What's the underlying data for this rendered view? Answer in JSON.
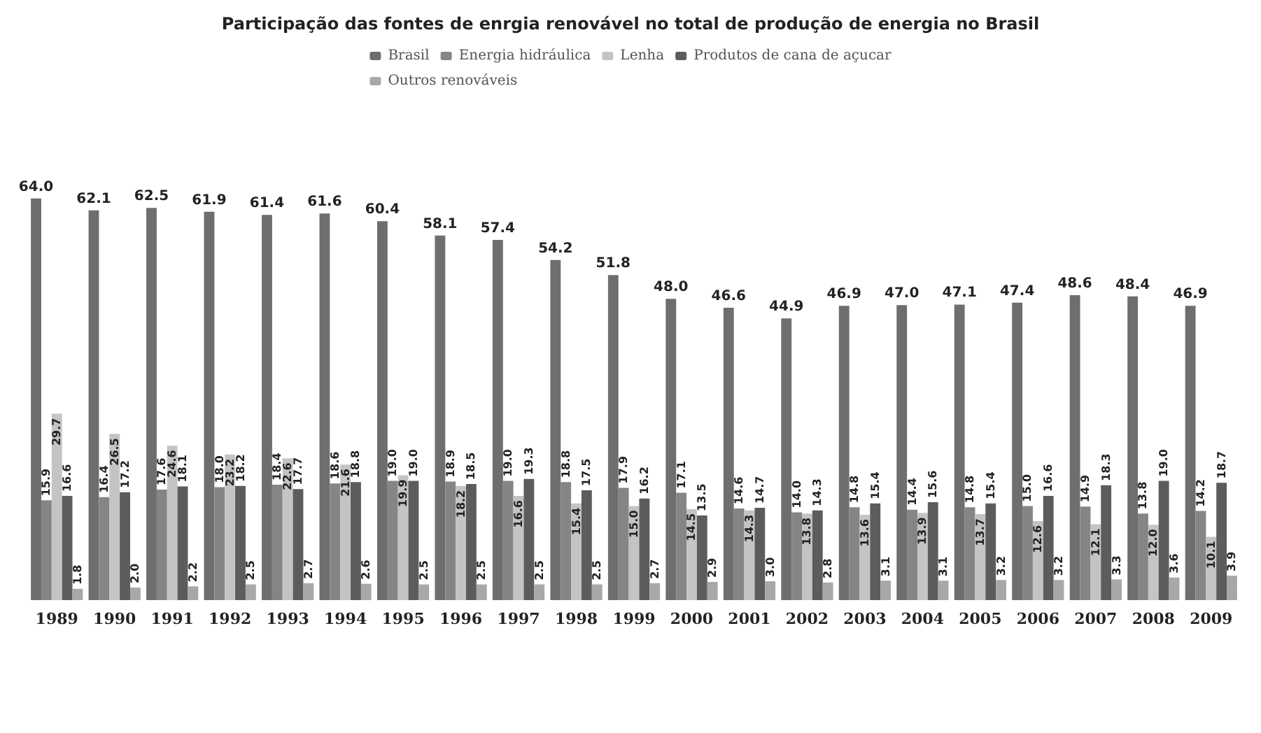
{
  "chart_data": {
    "type": "bar",
    "title": "Participação das fontes de enrgia renovável no total de produção de energia no Brasil",
    "categories": [
      "1989",
      "1990",
      "1991",
      "1992",
      "1993",
      "1994",
      "1995",
      "1996",
      "1997",
      "1998",
      "1999",
      "2000",
      "2001",
      "2002",
      "2003",
      "2004",
      "2005",
      "2006",
      "2007",
      "2008",
      "2009"
    ],
    "series": [
      {
        "name": "Brasil",
        "color": "#6e6e6e",
        "values": [
          64.0,
          62.1,
          62.5,
          61.9,
          61.4,
          61.6,
          60.4,
          58.1,
          57.4,
          54.2,
          51.8,
          48.0,
          46.6,
          44.9,
          46.9,
          47.0,
          47.1,
          47.4,
          48.6,
          48.4,
          46.9
        ],
        "value_labels": [
          "64.0",
          "62.1",
          "62.5",
          "61.9",
          "61.4",
          "61.6",
          "60.4",
          "58.1",
          "57.4",
          "54.2",
          "51.8",
          "48.0",
          "46.6",
          "44.9",
          "46.9",
          "47.0",
          "47.1",
          "47.4",
          "48.6",
          "48.4",
          "46.9"
        ]
      },
      {
        "name": "Energia hidráulica",
        "color": "#858585",
        "values": [
          15.9,
          16.4,
          17.6,
          18.0,
          18.4,
          18.6,
          19.0,
          18.9,
          19.0,
          18.8,
          17.9,
          17.1,
          14.6,
          14.0,
          14.8,
          14.4,
          14.8,
          15.0,
          14.9,
          13.8,
          14.2
        ],
        "value_labels": [
          "15.9",
          "16.4",
          "17.6",
          "18.0",
          "18.4",
          "18.6",
          "19.0",
          "18.9",
          "19.0",
          "18.8",
          "17.9",
          "17.1",
          "14.6",
          "14.0",
          "14.8",
          "14.4",
          "14.8",
          "15.0",
          "14.9",
          "13.8",
          "14.2"
        ]
      },
      {
        "name": "Lenha",
        "color": "#c4c4c4",
        "values": [
          29.7,
          26.5,
          24.6,
          23.2,
          22.6,
          21.6,
          19.9,
          18.2,
          16.6,
          15.4,
          15.0,
          14.5,
          14.3,
          13.8,
          13.6,
          13.9,
          13.7,
          12.6,
          12.1,
          12.0,
          10.1
        ],
        "value_labels": [
          "29.7",
          "26.5",
          "24.6",
          "23.2",
          "22.6",
          "21.6",
          "19.9",
          "18.2",
          "16.6",
          "15.4",
          "15.0",
          "14.5",
          "14.3",
          "13.8",
          "13.6",
          "13.9",
          "13.7",
          "12.6",
          "12.1",
          "12.0",
          "10.1"
        ]
      },
      {
        "name": "Produtos de cana de açucar",
        "color": "#5c5c5c",
        "values": [
          16.6,
          17.2,
          18.1,
          18.2,
          17.7,
          18.8,
          19.0,
          18.5,
          19.3,
          17.5,
          16.2,
          13.5,
          14.7,
          14.3,
          15.4,
          15.6,
          15.4,
          16.6,
          18.3,
          19.0,
          18.7
        ],
        "value_labels": [
          "16.6",
          "17.2",
          "18.1",
          "18.2",
          "17.7",
          "18.8",
          "19.0",
          "18.5",
          "19.3",
          "17.5",
          "16.2",
          "13.5",
          "14.7",
          "14.3",
          "15.4",
          "15.6",
          "15.4",
          "16.6",
          "18.3",
          "19.0",
          "18.7"
        ]
      },
      {
        "name": "Outros renováveis",
        "color": "#a8a8a8",
        "values": [
          1.8,
          2.0,
          2.2,
          2.5,
          2.7,
          2.6,
          2.5,
          2.5,
          2.5,
          2.5,
          2.7,
          2.9,
          3.0,
          2.8,
          3.1,
          3.1,
          3.2,
          3.2,
          3.3,
          3.6,
          3.9
        ],
        "value_labels": [
          "1.8",
          "2.0",
          "2.2",
          "2.5",
          "2.7",
          "2.6",
          "2.5",
          "2.5",
          "2.5",
          "2.5",
          "2.7",
          "2.9",
          "3.0",
          "2.8",
          "3.1",
          "3.1",
          "3.2",
          "3.2",
          "3.3",
          "3.6",
          "3.9"
        ]
      }
    ],
    "tick_labels": "x",
    "grid": false,
    "legend": "top"
  }
}
